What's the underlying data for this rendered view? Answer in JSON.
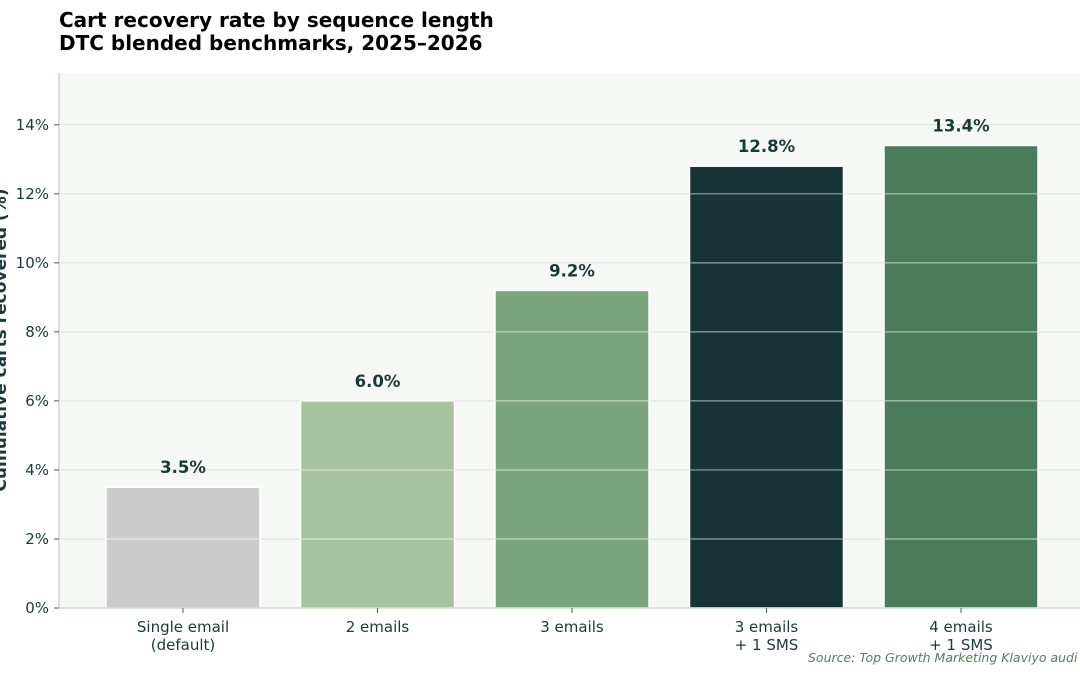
{
  "chart_data": {
    "type": "bar",
    "title_lines": [
      "Cart recovery rate by sequence length",
      "DTC blended benchmarks, 2025–2026"
    ],
    "ylabel": "Cumulative carts recovered (%)",
    "xlabel": "",
    "categories": [
      [
        "Single email",
        "(default)"
      ],
      [
        "2 emails"
      ],
      [
        "3 emails"
      ],
      [
        "3 emails",
        "+ 1 SMS"
      ],
      [
        "4 emails",
        "+ 1 SMS"
      ]
    ],
    "values": [
      3.5,
      6.0,
      9.2,
      12.8,
      13.4
    ],
    "value_labels": [
      "3.5%",
      "6.0%",
      "9.2%",
      "12.8%",
      "13.4%"
    ],
    "bar_colors": [
      "#cccccc",
      "#a8c49f",
      "#7aa57a",
      "#173335",
      "#4b7c5a"
    ],
    "ylim": [
      0,
      15.5
    ],
    "yticks": [
      0,
      2,
      4,
      6,
      8,
      10,
      12,
      14
    ],
    "ytick_labels": [
      "0%",
      "2%",
      "4%",
      "6%",
      "8%",
      "10%",
      "12%",
      "14%"
    ],
    "grid": true,
    "plot_background": "#f6f8f6",
    "source": "Source: Top Growth Marketing Klaviyo audi"
  }
}
